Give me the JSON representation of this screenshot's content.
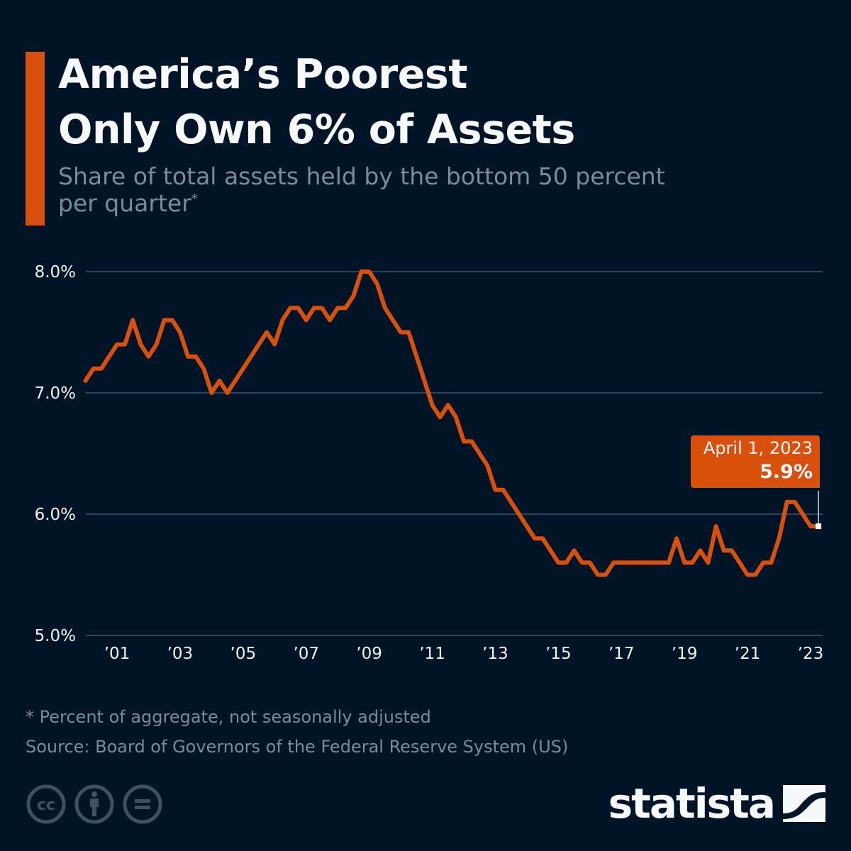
{
  "header": {
    "title_line1": "America’s Poorest",
    "title_line2": "Only Own 6% of Assets",
    "subtitle_line1": "Share of total assets held by the bottom 50 percent",
    "subtitle_line2": "per quarter",
    "subtitle_marker": "*"
  },
  "colors": {
    "background": "#001428",
    "accent": "#d9500c",
    "line": "#d9500c",
    "gridline": "#3f5468",
    "muted_text": "#7a8b9a",
    "text": "#f7f9fb"
  },
  "callout": {
    "date": "April 1, 2023",
    "value": "5.9%"
  },
  "footer": {
    "note": "* Percent of aggregate, not seasonally adjusted",
    "source": "Source: Board of Governors of the Federal Reserve System (US)",
    "license_icons": [
      "creative-commons-icon",
      "attribution-icon",
      "no-derivatives-icon"
    ],
    "brand": "statista"
  },
  "chart_data": {
    "type": "line",
    "title": "America’s Poorest Only Own 6% of Assets",
    "subtitle": "Share of total assets held by the bottom 50 percent per quarter*",
    "xlabel": "",
    "ylabel": "",
    "ylim": [
      5.0,
      8.0
    ],
    "yticks": [
      5.0,
      6.0,
      7.0,
      8.0
    ],
    "ytick_labels": [
      "5.0%",
      "6.0%",
      "7.0%",
      "8.0%"
    ],
    "xticks": [
      2001,
      2003,
      2005,
      2007,
      2009,
      2011,
      2013,
      2015,
      2017,
      2019,
      2021,
      2023
    ],
    "xtick_labels": [
      "’01",
      "’03",
      "’05",
      "’07",
      "’09",
      "’11",
      "’13",
      "’15",
      "’17",
      "’19",
      "’21",
      "’23"
    ],
    "x_start": "2000 Q1",
    "x_end": "2023 Q2",
    "frequency": "quarterly",
    "grid": true,
    "legend": "none",
    "series": [
      {
        "name": "Bottom 50% share of total assets (%)",
        "values": [
          7.1,
          7.2,
          7.2,
          7.3,
          7.4,
          7.4,
          7.6,
          7.4,
          7.3,
          7.4,
          7.6,
          7.6,
          7.5,
          7.3,
          7.3,
          7.2,
          7.0,
          7.1,
          7.0,
          7.1,
          7.2,
          7.3,
          7.4,
          7.5,
          7.4,
          7.6,
          7.7,
          7.7,
          7.6,
          7.7,
          7.7,
          7.6,
          7.7,
          7.7,
          7.8,
          8.0,
          8.0,
          7.9,
          7.7,
          7.6,
          7.5,
          7.5,
          7.3,
          7.1,
          6.9,
          6.8,
          6.9,
          6.8,
          6.6,
          6.6,
          6.5,
          6.4,
          6.2,
          6.2,
          6.1,
          6.0,
          5.9,
          5.8,
          5.8,
          5.7,
          5.6,
          5.6,
          5.7,
          5.6,
          5.6,
          5.5,
          5.5,
          5.6,
          5.6,
          5.6,
          5.6,
          5.6,
          5.6,
          5.6,
          5.6,
          5.8,
          5.6,
          5.6,
          5.7,
          5.6,
          5.9,
          5.7,
          5.7,
          5.6,
          5.5,
          5.5,
          5.6,
          5.6,
          5.8,
          6.1,
          6.1,
          6.0,
          5.9,
          5.9
        ]
      }
    ],
    "annotations": [
      {
        "label": "April 1, 2023",
        "value": 5.9,
        "display": "5.9%",
        "at": "2023 Q2"
      }
    ]
  }
}
